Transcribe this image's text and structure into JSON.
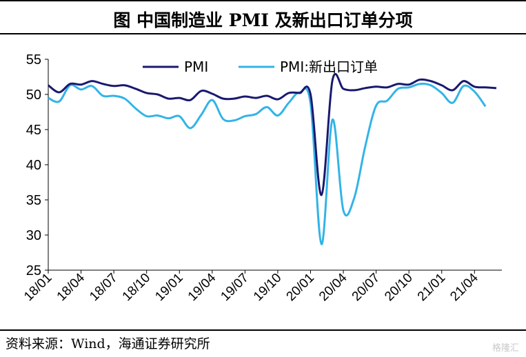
{
  "header": {
    "title": "图  中国制造业 PMI 及新出口订单分项"
  },
  "footer": {
    "source": "资料来源：Wind，海通证券研究所",
    "watermark": "格隆汇"
  },
  "colors": {
    "pmi": "#191970",
    "export_orders": "#32b4e6",
    "axis": "#000000"
  },
  "chart_data": {
    "type": "line",
    "title": "图  中国制造业 PMI 及新出口订单分项",
    "ylim": [
      25,
      55
    ],
    "yticks": [
      25,
      30,
      35,
      40,
      45,
      50,
      55
    ],
    "xticks": [
      "18/01",
      "18/04",
      "18/07",
      "18/10",
      "19/01",
      "19/04",
      "19/07",
      "19/10",
      "20/01",
      "20/04",
      "20/07",
      "20/10",
      "21/01",
      "21/04"
    ],
    "x": [
      "18/01",
      "18/02",
      "18/03",
      "18/04",
      "18/05",
      "18/06",
      "18/07",
      "18/08",
      "18/09",
      "18/10",
      "18/11",
      "18/12",
      "19/01",
      "19/02",
      "19/03",
      "19/04",
      "19/05",
      "19/06",
      "19/07",
      "19/08",
      "19/09",
      "19/10",
      "19/11",
      "19/12",
      "20/01",
      "20/02",
      "20/03",
      "20/04",
      "20/05",
      "20/06",
      "20/07",
      "20/08",
      "20/09",
      "20/10",
      "20/11",
      "20/12",
      "21/01",
      "21/02",
      "21/03",
      "21/04",
      "21/05",
      "21/06"
    ],
    "legend_position": "top",
    "series": [
      {
        "name": "PMI",
        "values": [
          51.3,
          50.3,
          51.5,
          51.4,
          51.9,
          51.5,
          51.2,
          51.3,
          50.8,
          50.2,
          50.0,
          49.4,
          49.5,
          49.2,
          50.5,
          50.1,
          49.4,
          49.4,
          49.7,
          49.5,
          49.8,
          49.3,
          50.2,
          50.2,
          50.0,
          35.7,
          52.0,
          50.8,
          50.6,
          50.9,
          51.1,
          51.0,
          51.5,
          51.4,
          52.1,
          51.9,
          51.3,
          50.6,
          51.9,
          51.1,
          51.0,
          50.9
        ]
      },
      {
        "name": "PMI:新出口订单",
        "values": [
          49.5,
          49.0,
          51.3,
          50.7,
          51.2,
          49.8,
          49.8,
          49.4,
          48.0,
          46.9,
          47.0,
          46.6,
          46.9,
          45.2,
          47.1,
          49.2,
          46.5,
          46.3,
          46.9,
          47.2,
          48.2,
          47.0,
          48.8,
          50.3,
          48.7,
          28.7,
          46.4,
          33.5,
          35.3,
          42.6,
          48.4,
          49.1,
          50.8,
          51.0,
          51.5,
          51.3,
          50.2,
          48.8,
          51.2,
          50.4,
          48.3,
          null
        ]
      }
    ]
  }
}
